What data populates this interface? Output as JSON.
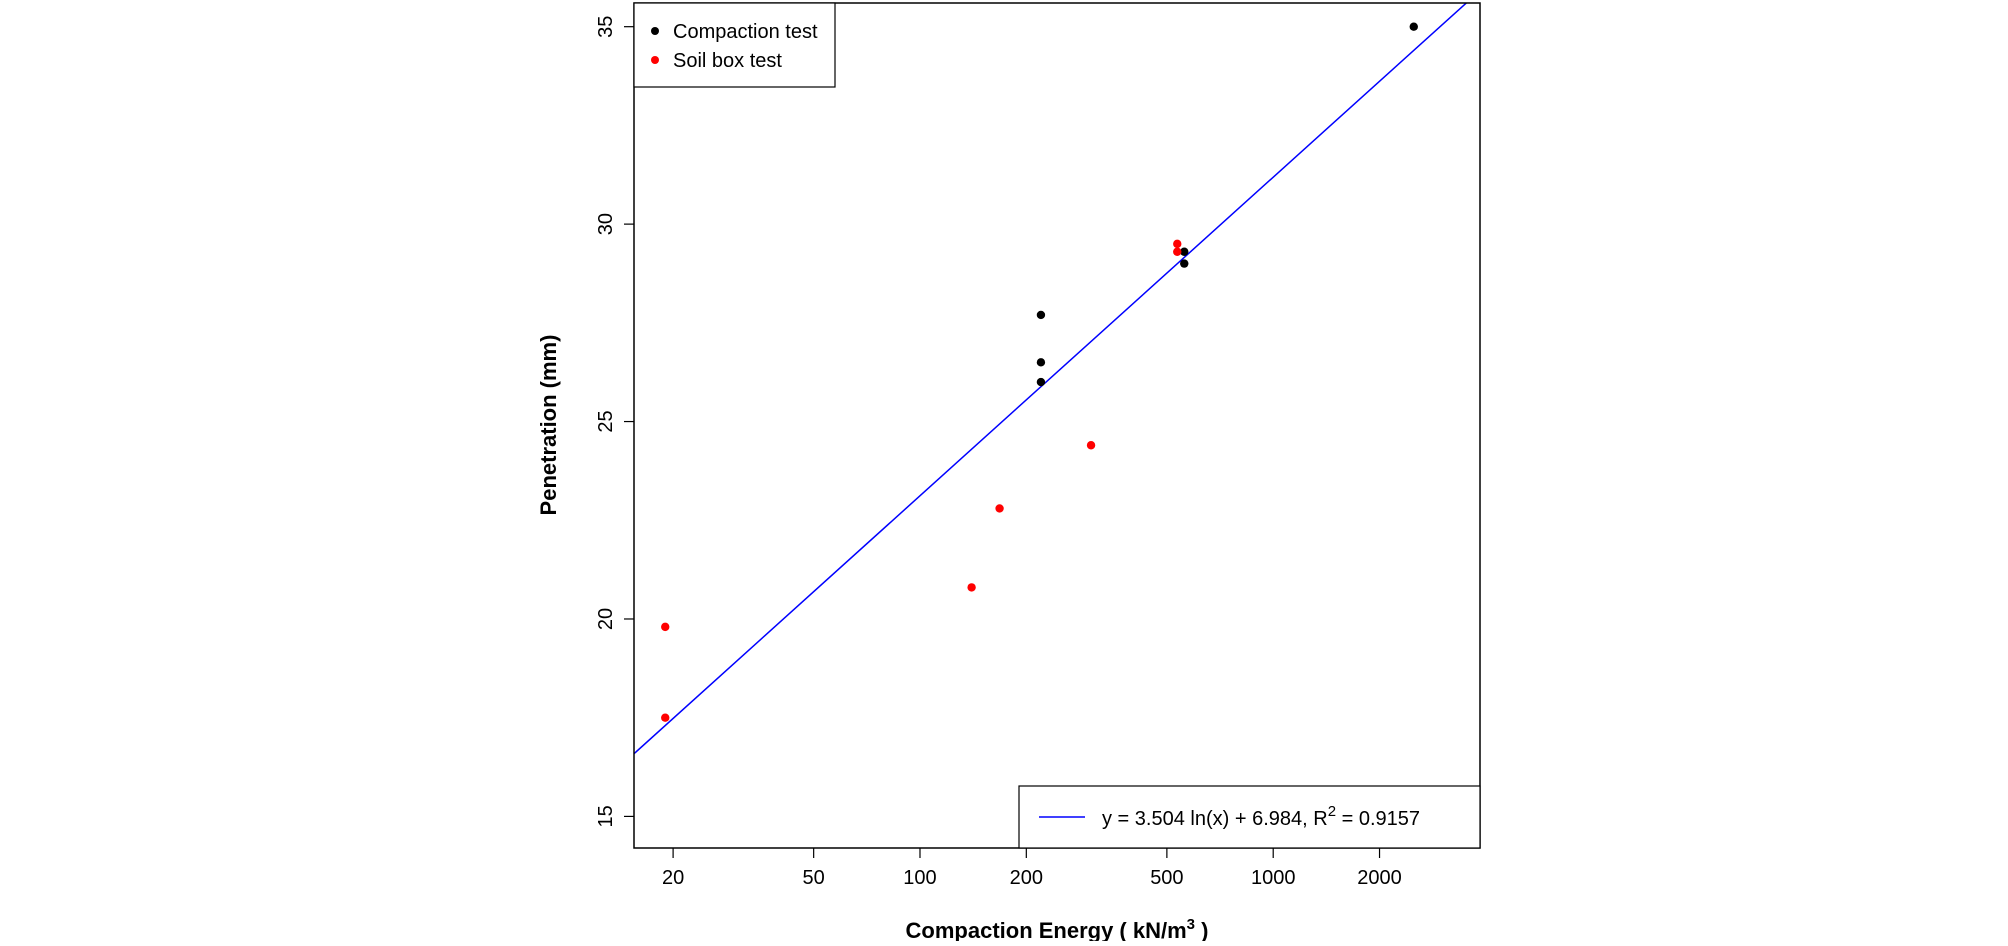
{
  "chart_data": {
    "type": "scatter",
    "xlabel": "Compaction Energy ( kN/m",
    "xlabel_sup": "3",
    "xlabel_end": " )",
    "ylabel": "Penetration (mm)",
    "x_scale": "log",
    "xlim": [
      15.5,
      3850
    ],
    "ylim": [
      14.2,
      35.6
    ],
    "x_ticks": [
      20,
      50,
      100,
      200,
      500,
      1000,
      2000
    ],
    "x_tick_labels": [
      "20",
      "50",
      "100",
      "200",
      "500",
      "1000",
      "2000"
    ],
    "y_ticks": [
      15,
      20,
      25,
      30,
      35
    ],
    "y_tick_labels": [
      "15",
      "20",
      "25",
      "30",
      "35"
    ],
    "grid": false,
    "series": [
      {
        "name": "Compaction test",
        "color": "#000000",
        "points": [
          {
            "x": 220,
            "y": 27.7
          },
          {
            "x": 220,
            "y": 26.5
          },
          {
            "x": 220,
            "y": 26.0
          },
          {
            "x": 560,
            "y": 29.3
          },
          {
            "x": 560,
            "y": 29.0
          },
          {
            "x": 2500,
            "y": 35.0
          }
        ]
      },
      {
        "name": "Soil box test",
        "color": "#ff0000",
        "points": [
          {
            "x": 19,
            "y": 19.8
          },
          {
            "x": 19,
            "y": 17.5
          },
          {
            "x": 140,
            "y": 20.8
          },
          {
            "x": 168,
            "y": 22.8
          },
          {
            "x": 305,
            "y": 24.4
          },
          {
            "x": 535,
            "y": 29.5
          },
          {
            "x": 535,
            "y": 29.3
          }
        ]
      }
    ],
    "fit": {
      "label": "y = 3.504 ln(x) + 6.984, R",
      "label_sup": "2",
      "label_end": " = 0.9157",
      "a": 3.504,
      "b": 6.984,
      "color": "#0000ff"
    },
    "legend_position": "top-left",
    "fit_legend_position": "bottom-right"
  }
}
